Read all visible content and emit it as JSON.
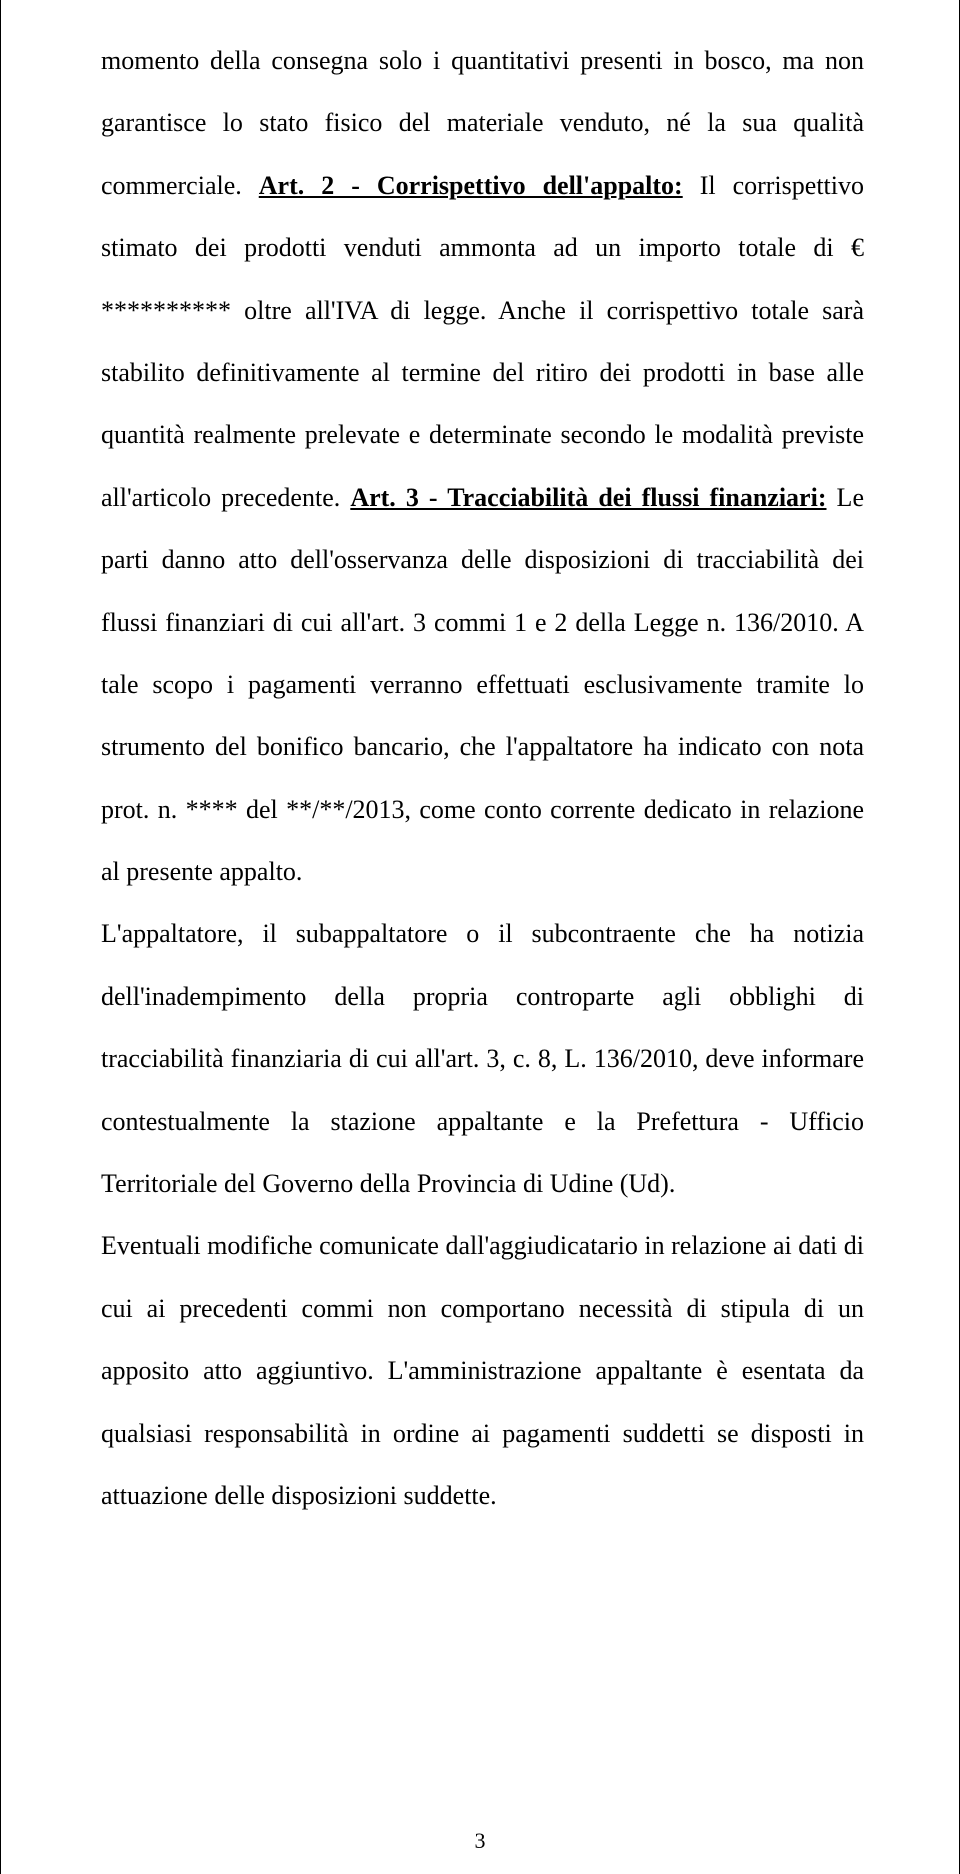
{
  "document": {
    "page_number": "3",
    "text_color": "#000000",
    "background_color": "#ffffff",
    "font_family": "Times New Roman",
    "font_size_pt": 20,
    "line_height": 2.4,
    "paragraphs": {
      "p1_pre": "momento della consegna solo i quantitativi presenti in bosco, ma non garantisce lo stato fisico del materiale venduto, né la sua qualità commerciale. ",
      "p1_art2_label": "Art. 2 - Corrispettivo dell'appalto:",
      "p1_art2_body": " Il corrispettivo stimato dei prodotti venduti ammonta ad un importo totale di € ********** oltre all'IVA di legge. Anche il corrispettivo totale sarà stabilito definitivamente al termine del ritiro dei prodotti in base alle quantità realmente prelevate e determinate secondo le modalità previste all'articolo precedente. ",
      "p1_art3_label": "Art. 3 - Tracciabilità dei flussi finanziari:",
      "p1_art3_body": " Le parti danno atto dell'osservanza delle disposizioni di tracciabilità dei flussi finanziari di cui all'art. 3 commi 1 e 2 della Legge n. 136/2010. A tale scopo i pagamenti verranno effettuati esclusivamente tramite lo strumento del bonifico bancario, che l'appaltatore ha indicato con nota prot. n. **** del **/**/2013, come conto corrente dedicato in relazione al presente appalto. ",
      "p2": "L'appaltatore, il subappaltatore o il subcontraente che ha notizia dell'inadempimento della propria controparte agli obblighi di tracciabilità finanziaria di cui all'art. 3, c. 8, L. 136/2010, deve informare contestualmente la stazione appaltante e la Prefettura - Ufficio Territoriale del Governo della Provincia di Udine (Ud). ",
      "p3": "Eventuali modifiche comunicate dall'aggiudicatario in relazione ai dati di cui ai precedenti commi non comportano necessità di stipula di un apposito atto aggiuntivo. L'amministrazione appaltante è esentata da qualsiasi responsabilità in ordine ai pagamenti suddetti se disposti in attuazione delle disposizioni suddette. "
    }
  }
}
